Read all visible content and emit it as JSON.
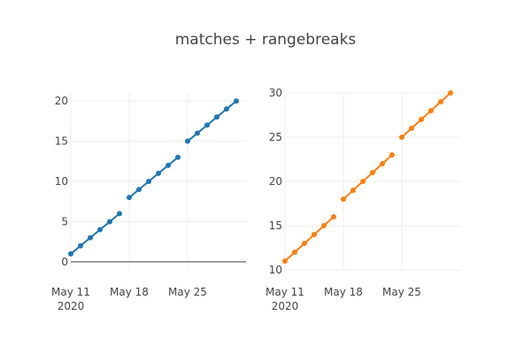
{
  "chart_data": {
    "type": "line",
    "title": "matches + rangebreaks",
    "grid": true,
    "legend": "none",
    "x_ticks": [
      {
        "date": "2020-05-11",
        "label": "May 11",
        "sub": "2020"
      },
      {
        "date": "2020-05-18",
        "label": "May 18",
        "sub": ""
      },
      {
        "date": "2020-05-25",
        "label": "May 25",
        "sub": ""
      }
    ],
    "panels": [
      {
        "name": "left",
        "color": "#1f77b4",
        "ylim": [
          -1,
          21
        ],
        "y_ticks": [
          0,
          5,
          10,
          15,
          20
        ],
        "zeroline": true,
        "series": [
          {
            "x": [
              "2020-05-11",
              "2020-05-12",
              "2020-05-13",
              "2020-05-14",
              "2020-05-15",
              "2020-05-16",
              "2020-05-18",
              "2020-05-19",
              "2020-05-20",
              "2020-05-21",
              "2020-05-22",
              "2020-05-23",
              "2020-05-25",
              "2020-05-26",
              "2020-05-27",
              "2020-05-28",
              "2020-05-29",
              "2020-05-30"
            ],
            "y": [
              1,
              2,
              3,
              4,
              5,
              6,
              8,
              9,
              10,
              11,
              12,
              13,
              15,
              16,
              17,
              18,
              19,
              20
            ]
          }
        ]
      },
      {
        "name": "right",
        "color": "#ff7f0e",
        "ylim": [
          10,
          30
        ],
        "y_ticks": [
          10,
          15,
          20,
          25,
          30
        ],
        "zeroline": false,
        "series": [
          {
            "x": [
              "2020-05-11",
              "2020-05-12",
              "2020-05-13",
              "2020-05-14",
              "2020-05-15",
              "2020-05-16",
              "2020-05-18",
              "2020-05-19",
              "2020-05-20",
              "2020-05-21",
              "2020-05-22",
              "2020-05-23",
              "2020-05-25",
              "2020-05-26",
              "2020-05-27",
              "2020-05-28",
              "2020-05-29",
              "2020-05-30"
            ],
            "y": [
              11,
              12,
              13,
              14,
              15,
              16,
              18,
              19,
              20,
              21,
              22,
              23,
              25,
              26,
              27,
              28,
              29,
              30
            ]
          }
        ]
      }
    ]
  }
}
